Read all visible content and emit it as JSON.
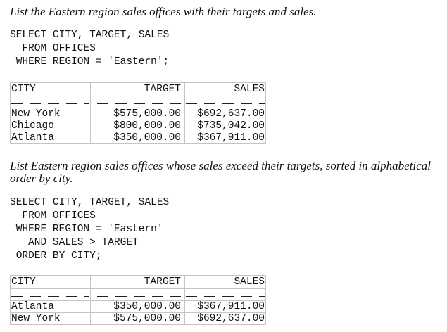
{
  "sections": [
    {
      "description": "List the Eastern region sales offices with their targets and sales.",
      "sql": [
        "SELECT CITY, TARGET, SALES",
        "  FROM OFFICES",
        " WHERE REGION = 'Eastern';"
      ],
      "table": {
        "columns": [
          "CITY",
          "TARGET",
          "SALES"
        ],
        "rows": [
          [
            "New York",
            "$575,000.00",
            "$692,637.00"
          ],
          [
            "Chicago",
            "$800,000.00",
            "$735,042.00"
          ],
          [
            "Atlanta",
            "$350,000.00",
            "$367,911.00"
          ]
        ]
      }
    },
    {
      "description": "List Eastern region sales offices whose sales exceed their targets, sorted in alphabetical order by city.",
      "sql": [
        "SELECT CITY, TARGET, SALES",
        "  FROM OFFICES",
        " WHERE REGION = 'Eastern'",
        "   AND SALES > TARGET",
        " ORDER BY CITY;"
      ],
      "table": {
        "columns": [
          "CITY",
          "TARGET",
          "SALES"
        ],
        "rows": [
          [
            "Atlanta",
            "$350,000.00",
            "$367,911.00"
          ],
          [
            "New York",
            "$575,000.00",
            "$692,637.00"
          ]
        ]
      }
    }
  ]
}
